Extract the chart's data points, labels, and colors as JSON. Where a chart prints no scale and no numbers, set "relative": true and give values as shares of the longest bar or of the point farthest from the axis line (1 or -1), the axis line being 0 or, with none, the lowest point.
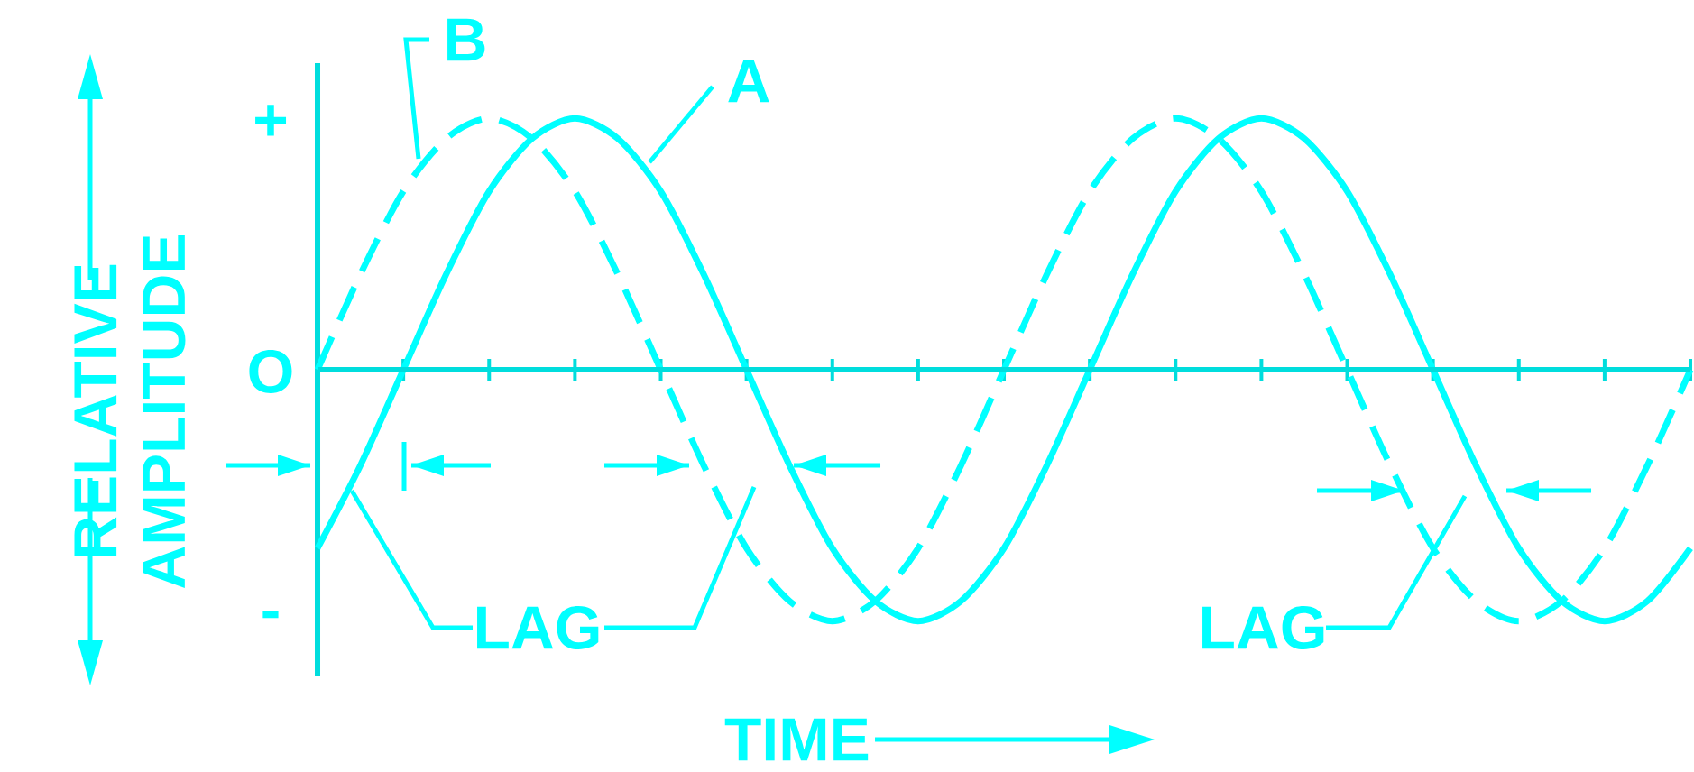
{
  "chart_data": {
    "type": "line",
    "xlabel": "TIME",
    "ylabel": "RELATIVE AMPLITUDE",
    "categories": [
      null,
      null,
      null,
      null,
      null,
      null,
      null,
      null,
      null,
      null,
      null,
      null,
      null,
      null,
      null,
      null,
      null,
      null,
      null,
      null,
      null,
      null,
      null,
      null,
      null,
      null,
      null,
      null,
      null,
      null,
      null,
      null,
      null
    ],
    "relative": true,
    "ref_lines": [
      {
        "axis": "y",
        "value": 0,
        "color": "#00dddd"
      }
    ],
    "series": [
      {
        "name": "A",
        "color": "#00ffff",
        "line_style": "solid",
        "values": [
          -0.71,
          -0.38,
          0,
          0.38,
          0.71,
          0.92,
          1,
          0.92,
          0.71,
          0.38,
          0,
          -0.38,
          -0.71,
          -0.92,
          -1,
          -0.92,
          -0.71,
          -0.38,
          0,
          0.38,
          0.71,
          0.92,
          1,
          0.92,
          0.71,
          0.38,
          0,
          -0.38,
          -0.71,
          -0.92,
          -1,
          -0.92,
          -0.71
        ]
      },
      {
        "name": "B",
        "color": "#00ffff",
        "line_style": "dashed",
        "values": [
          0,
          0.38,
          0.71,
          0.92,
          1,
          0.92,
          0.71,
          0.38,
          0,
          -0.38,
          -0.71,
          -0.92,
          -1,
          -0.92,
          -0.71,
          -0.38,
          0,
          0.38,
          0.71,
          0.92,
          1,
          0.92,
          0.71,
          0.38,
          0,
          -0.38,
          -0.71,
          -0.92,
          -1,
          -0.92,
          -0.71,
          -0.38,
          0
        ]
      }
    ],
    "annotations": [
      "+",
      "O",
      "-",
      "LAG",
      "LAG"
    ]
  }
}
